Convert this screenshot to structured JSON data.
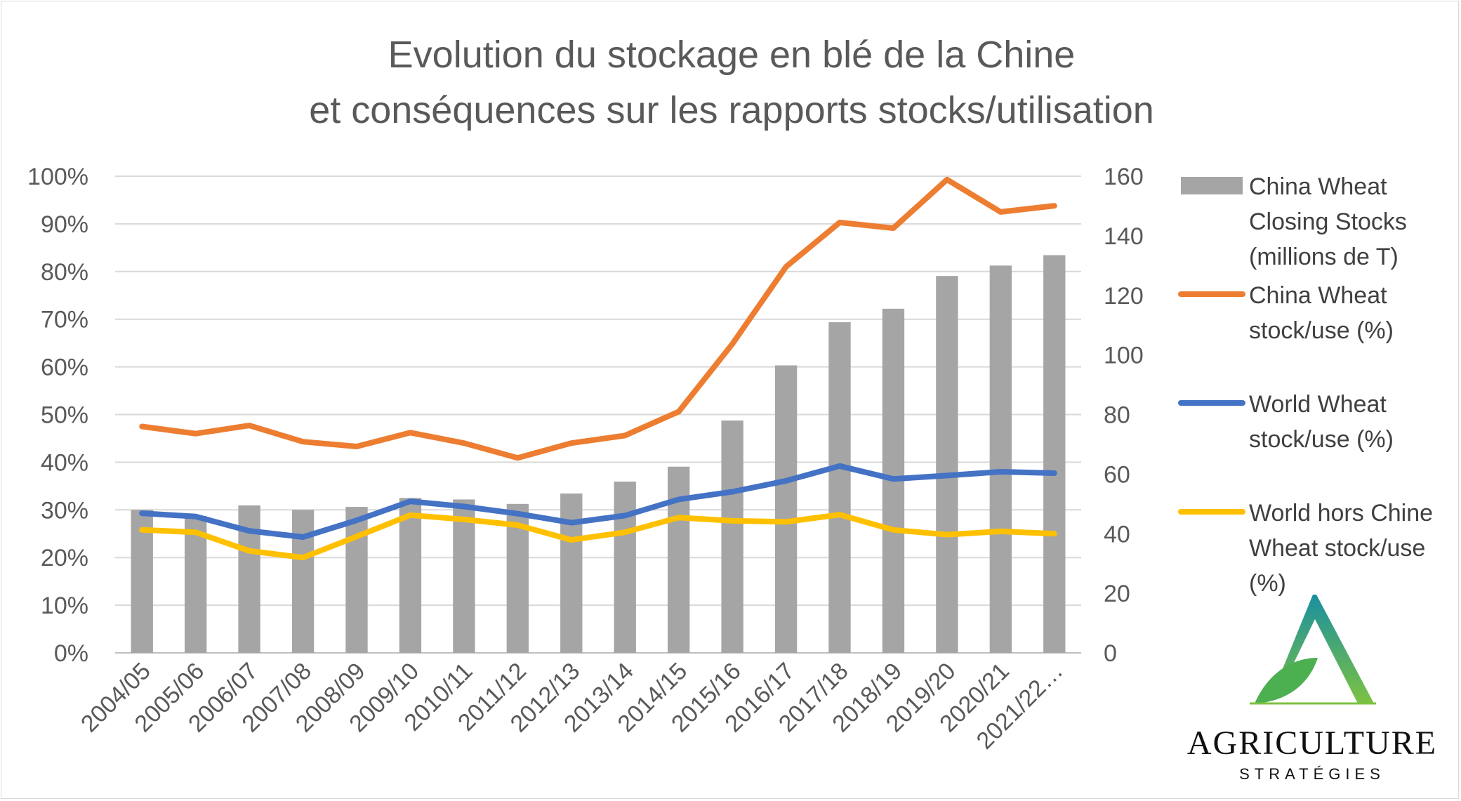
{
  "chart_data": {
    "type": "bar+line",
    "title_lines": [
      "Evolution du stockage en blé de la Chine",
      "et conséquences sur les rapports stocks/utilisation"
    ],
    "categories": [
      "2004/05",
      "2005/06",
      "2006/07",
      "2007/08",
      "2008/09",
      "2009/10",
      "2010/11",
      "2011/12",
      "2012/13",
      "2013/14",
      "2014/15",
      "2015/16",
      "2016/17",
      "2017/18",
      "2018/19",
      "2019/20",
      "2020/21",
      "2021/22…"
    ],
    "left_axis": {
      "ticks": [
        "0%",
        "10%",
        "20%",
        "30%",
        "40%",
        "50%",
        "60%",
        "70%",
        "80%",
        "90%",
        "100%"
      ],
      "range": [
        0,
        100
      ]
    },
    "right_axis": {
      "ticks": [
        "0",
        "20",
        "40",
        "60",
        "80",
        "100",
        "120",
        "140",
        "160"
      ],
      "range": [
        0,
        160
      ]
    },
    "bars": {
      "name_lines": [
        "China Wheat",
        "Closing Stocks",
        "(millions de T)"
      ],
      "color": "#a5a5a5",
      "axis": "right",
      "values": [
        48,
        46,
        49.5,
        48,
        49,
        52,
        51.5,
        50,
        53.5,
        57.5,
        62.5,
        78,
        96.5,
        111,
        115.5,
        126.5,
        130,
        133.5
      ]
    },
    "series": [
      {
        "name_lines": [
          "China Wheat",
          "stock/use (%)"
        ],
        "color": "#ed7d31",
        "axis": "left",
        "values": [
          47.5,
          46,
          47.7,
          44.3,
          43.3,
          46.2,
          44,
          40.9,
          44,
          45.6,
          50.6,
          64.8,
          81,
          90.3,
          89.1,
          99.3,
          92.5,
          93.8
        ]
      },
      {
        "name_lines": [
          "World Wheat",
          "stock/use (%)"
        ],
        "color": "#4472c4",
        "axis": "left",
        "values": [
          29.3,
          28.6,
          25.6,
          24.3,
          27.8,
          31.8,
          30.7,
          29.2,
          27.3,
          28.8,
          32.2,
          33.8,
          36.1,
          39.2,
          36.5,
          37.2,
          38,
          37.7
        ]
      },
      {
        "name_lines": [
          "World hors Chine",
          "Wheat stock/use",
          "(%)"
        ],
        "color": "#ffc000",
        "axis": "left",
        "values": [
          25.8,
          25.3,
          21.4,
          20,
          24.4,
          28.9,
          28,
          26.8,
          23.7,
          25.3,
          28.4,
          27.7,
          27.5,
          29,
          25.8,
          24.8,
          25.5,
          25
        ]
      }
    ],
    "gridlines": true,
    "legend_position": "right"
  },
  "logo": {
    "letter": "A",
    "word": "AGRICULTURE",
    "sub": "STRATÉGIES",
    "colors": {
      "top": "#1a8fa0",
      "bottom": "#7cc242",
      "leaf": "#4caf50"
    }
  }
}
